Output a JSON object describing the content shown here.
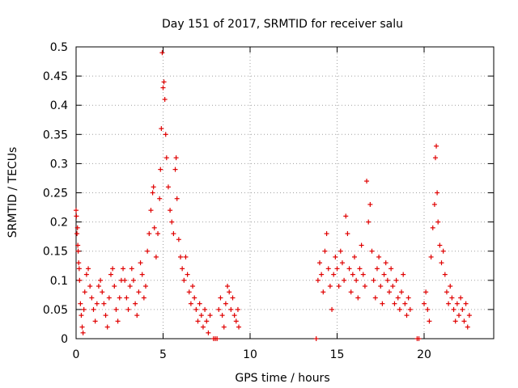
{
  "chart_data": {
    "type": "scatter",
    "title": "Day 151 of 2017, SRMTID for receiver salu",
    "xlabel": "GPS time / hours",
    "ylabel": "SRMTID / TECUs",
    "xlim": [
      0,
      24
    ],
    "ylim": [
      0,
      0.5
    ],
    "grid": true,
    "marker": "+",
    "color": "#e00000",
    "x_ticks": [
      0,
      5,
      10,
      15,
      20
    ],
    "x_tick_labels": [
      "0",
      "5",
      "10",
      "15",
      "20"
    ],
    "y_ticks": [
      0,
      0.05,
      0.1,
      0.15,
      0.2,
      0.25,
      0.3,
      0.35,
      0.4,
      0.45,
      0.5
    ],
    "y_tick_labels": [
      "0",
      "0.05",
      "0.1",
      "0.15",
      "0.2",
      "0.25",
      "0.3",
      "0.35",
      "0.4",
      "0.45",
      "0.5"
    ],
    "series": [
      {
        "name": "SRMTID",
        "points": [
          [
            0.0,
            0.22
          ],
          [
            0.02,
            0.21
          ],
          [
            0.05,
            0.18
          ],
          [
            0.08,
            0.19
          ],
          [
            0.1,
            0.16
          ],
          [
            0.12,
            0.15
          ],
          [
            0.15,
            0.13
          ],
          [
            0.18,
            0.12
          ],
          [
            0.2,
            0.1
          ],
          [
            0.25,
            0.06
          ],
          [
            0.3,
            0.04
          ],
          [
            0.35,
            0.02
          ],
          [
            0.4,
            0.01
          ],
          [
            0.45,
            0.05
          ],
          [
            0.5,
            0.08
          ],
          [
            0.6,
            0.11
          ],
          [
            0.7,
            0.12
          ],
          [
            0.8,
            0.09
          ],
          [
            0.9,
            0.07
          ],
          [
            1.0,
            0.05
          ],
          [
            1.1,
            0.03
          ],
          [
            1.2,
            0.06
          ],
          [
            1.3,
            0.09
          ],
          [
            1.4,
            0.1
          ],
          [
            1.5,
            0.08
          ],
          [
            1.6,
            0.06
          ],
          [
            1.7,
            0.04
          ],
          [
            1.8,
            0.02
          ],
          [
            1.9,
            0.07
          ],
          [
            2.0,
            0.11
          ],
          [
            2.1,
            0.12
          ],
          [
            2.2,
            0.09
          ],
          [
            2.3,
            0.05
          ],
          [
            2.4,
            0.03
          ],
          [
            2.5,
            0.07
          ],
          [
            2.6,
            0.1
          ],
          [
            2.7,
            0.12
          ],
          [
            2.8,
            0.1
          ],
          [
            2.9,
            0.07
          ],
          [
            3.0,
            0.05
          ],
          [
            3.1,
            0.09
          ],
          [
            3.2,
            0.12
          ],
          [
            3.3,
            0.1
          ],
          [
            3.4,
            0.06
          ],
          [
            3.5,
            0.04
          ],
          [
            3.6,
            0.08
          ],
          [
            3.7,
            0.13
          ],
          [
            3.8,
            0.11
          ],
          [
            3.9,
            0.07
          ],
          [
            4.0,
            0.09
          ],
          [
            4.1,
            0.15
          ],
          [
            4.2,
            0.18
          ],
          [
            4.3,
            0.22
          ],
          [
            4.4,
            0.25
          ],
          [
            4.45,
            0.26
          ],
          [
            4.5,
            0.19
          ],
          [
            4.6,
            0.14
          ],
          [
            4.7,
            0.18
          ],
          [
            4.8,
            0.24
          ],
          [
            4.85,
            0.29
          ],
          [
            4.9,
            0.36
          ],
          [
            4.95,
            0.49
          ],
          [
            5.0,
            0.43
          ],
          [
            5.05,
            0.44
          ],
          [
            5.1,
            0.41
          ],
          [
            5.15,
            0.35
          ],
          [
            5.2,
            0.31
          ],
          [
            5.3,
            0.26
          ],
          [
            5.4,
            0.22
          ],
          [
            5.5,
            0.2
          ],
          [
            5.6,
            0.18
          ],
          [
            5.7,
            0.29
          ],
          [
            5.75,
            0.31
          ],
          [
            5.8,
            0.24
          ],
          [
            5.9,
            0.17
          ],
          [
            6.0,
            0.14
          ],
          [
            6.1,
            0.12
          ],
          [
            6.2,
            0.1
          ],
          [
            6.3,
            0.14
          ],
          [
            6.4,
            0.11
          ],
          [
            6.5,
            0.08
          ],
          [
            6.6,
            0.06
          ],
          [
            6.7,
            0.09
          ],
          [
            6.8,
            0.07
          ],
          [
            6.9,
            0.05
          ],
          [
            7.0,
            0.03
          ],
          [
            7.1,
            0.06
          ],
          [
            7.2,
            0.04
          ],
          [
            7.3,
            0.02
          ],
          [
            7.4,
            0.05
          ],
          [
            7.5,
            0.03
          ],
          [
            7.6,
            0.01
          ],
          [
            7.7,
            0.04
          ],
          [
            7.9,
            0.0
          ],
          [
            8.0,
            0.0
          ],
          [
            8.1,
            0.0
          ],
          [
            8.2,
            0.05
          ],
          [
            8.3,
            0.07
          ],
          [
            8.4,
            0.04
          ],
          [
            8.5,
            0.02
          ],
          [
            8.6,
            0.06
          ],
          [
            8.7,
            0.09
          ],
          [
            8.8,
            0.08
          ],
          [
            8.9,
            0.05
          ],
          [
            9.0,
            0.07
          ],
          [
            9.1,
            0.04
          ],
          [
            9.2,
            0.03
          ],
          [
            9.3,
            0.05
          ],
          [
            9.35,
            0.02
          ],
          [
            13.8,
            0.0
          ],
          [
            13.9,
            0.1
          ],
          [
            14.0,
            0.13
          ],
          [
            14.1,
            0.11
          ],
          [
            14.2,
            0.08
          ],
          [
            14.3,
            0.15
          ],
          [
            14.4,
            0.18
          ],
          [
            14.5,
            0.12
          ],
          [
            14.6,
            0.09
          ],
          [
            14.7,
            0.05
          ],
          [
            14.8,
            0.11
          ],
          [
            14.9,
            0.14
          ],
          [
            15.0,
            0.12
          ],
          [
            15.1,
            0.09
          ],
          [
            15.2,
            0.15
          ],
          [
            15.3,
            0.13
          ],
          [
            15.4,
            0.1
          ],
          [
            15.5,
            0.21
          ],
          [
            15.6,
            0.18
          ],
          [
            15.7,
            0.12
          ],
          [
            15.8,
            0.08
          ],
          [
            15.9,
            0.11
          ],
          [
            16.0,
            0.14
          ],
          [
            16.1,
            0.1
          ],
          [
            16.2,
            0.07
          ],
          [
            16.3,
            0.12
          ],
          [
            16.4,
            0.16
          ],
          [
            16.5,
            0.11
          ],
          [
            16.6,
            0.09
          ],
          [
            16.7,
            0.27
          ],
          [
            16.8,
            0.2
          ],
          [
            16.9,
            0.23
          ],
          [
            17.0,
            0.15
          ],
          [
            17.1,
            0.1
          ],
          [
            17.2,
            0.07
          ],
          [
            17.3,
            0.12
          ],
          [
            17.4,
            0.14
          ],
          [
            17.5,
            0.09
          ],
          [
            17.6,
            0.06
          ],
          [
            17.7,
            0.11
          ],
          [
            17.8,
            0.13
          ],
          [
            17.9,
            0.1
          ],
          [
            18.0,
            0.08
          ],
          [
            18.1,
            0.12
          ],
          [
            18.2,
            0.09
          ],
          [
            18.3,
            0.06
          ],
          [
            18.4,
            0.1
          ],
          [
            18.5,
            0.07
          ],
          [
            18.6,
            0.05
          ],
          [
            18.7,
            0.08
          ],
          [
            18.8,
            0.11
          ],
          [
            18.9,
            0.06
          ],
          [
            19.0,
            0.04
          ],
          [
            19.1,
            0.07
          ],
          [
            19.2,
            0.05
          ],
          [
            19.6,
            0.0
          ],
          [
            19.7,
            0.0
          ],
          [
            20.0,
            0.06
          ],
          [
            20.1,
            0.08
          ],
          [
            20.2,
            0.05
          ],
          [
            20.3,
            0.03
          ],
          [
            20.4,
            0.14
          ],
          [
            20.5,
            0.19
          ],
          [
            20.6,
            0.23
          ],
          [
            20.65,
            0.31
          ],
          [
            20.7,
            0.33
          ],
          [
            20.75,
            0.25
          ],
          [
            20.8,
            0.2
          ],
          [
            20.9,
            0.16
          ],
          [
            21.0,
            0.13
          ],
          [
            21.1,
            0.15
          ],
          [
            21.2,
            0.11
          ],
          [
            21.3,
            0.08
          ],
          [
            21.4,
            0.06
          ],
          [
            21.5,
            0.09
          ],
          [
            21.6,
            0.07
          ],
          [
            21.7,
            0.05
          ],
          [
            21.8,
            0.03
          ],
          [
            21.9,
            0.06
          ],
          [
            22.0,
            0.04
          ],
          [
            22.1,
            0.07
          ],
          [
            22.2,
            0.05
          ],
          [
            22.3,
            0.03
          ],
          [
            22.4,
            0.06
          ],
          [
            22.5,
            0.02
          ],
          [
            22.6,
            0.04
          ]
        ]
      }
    ]
  }
}
